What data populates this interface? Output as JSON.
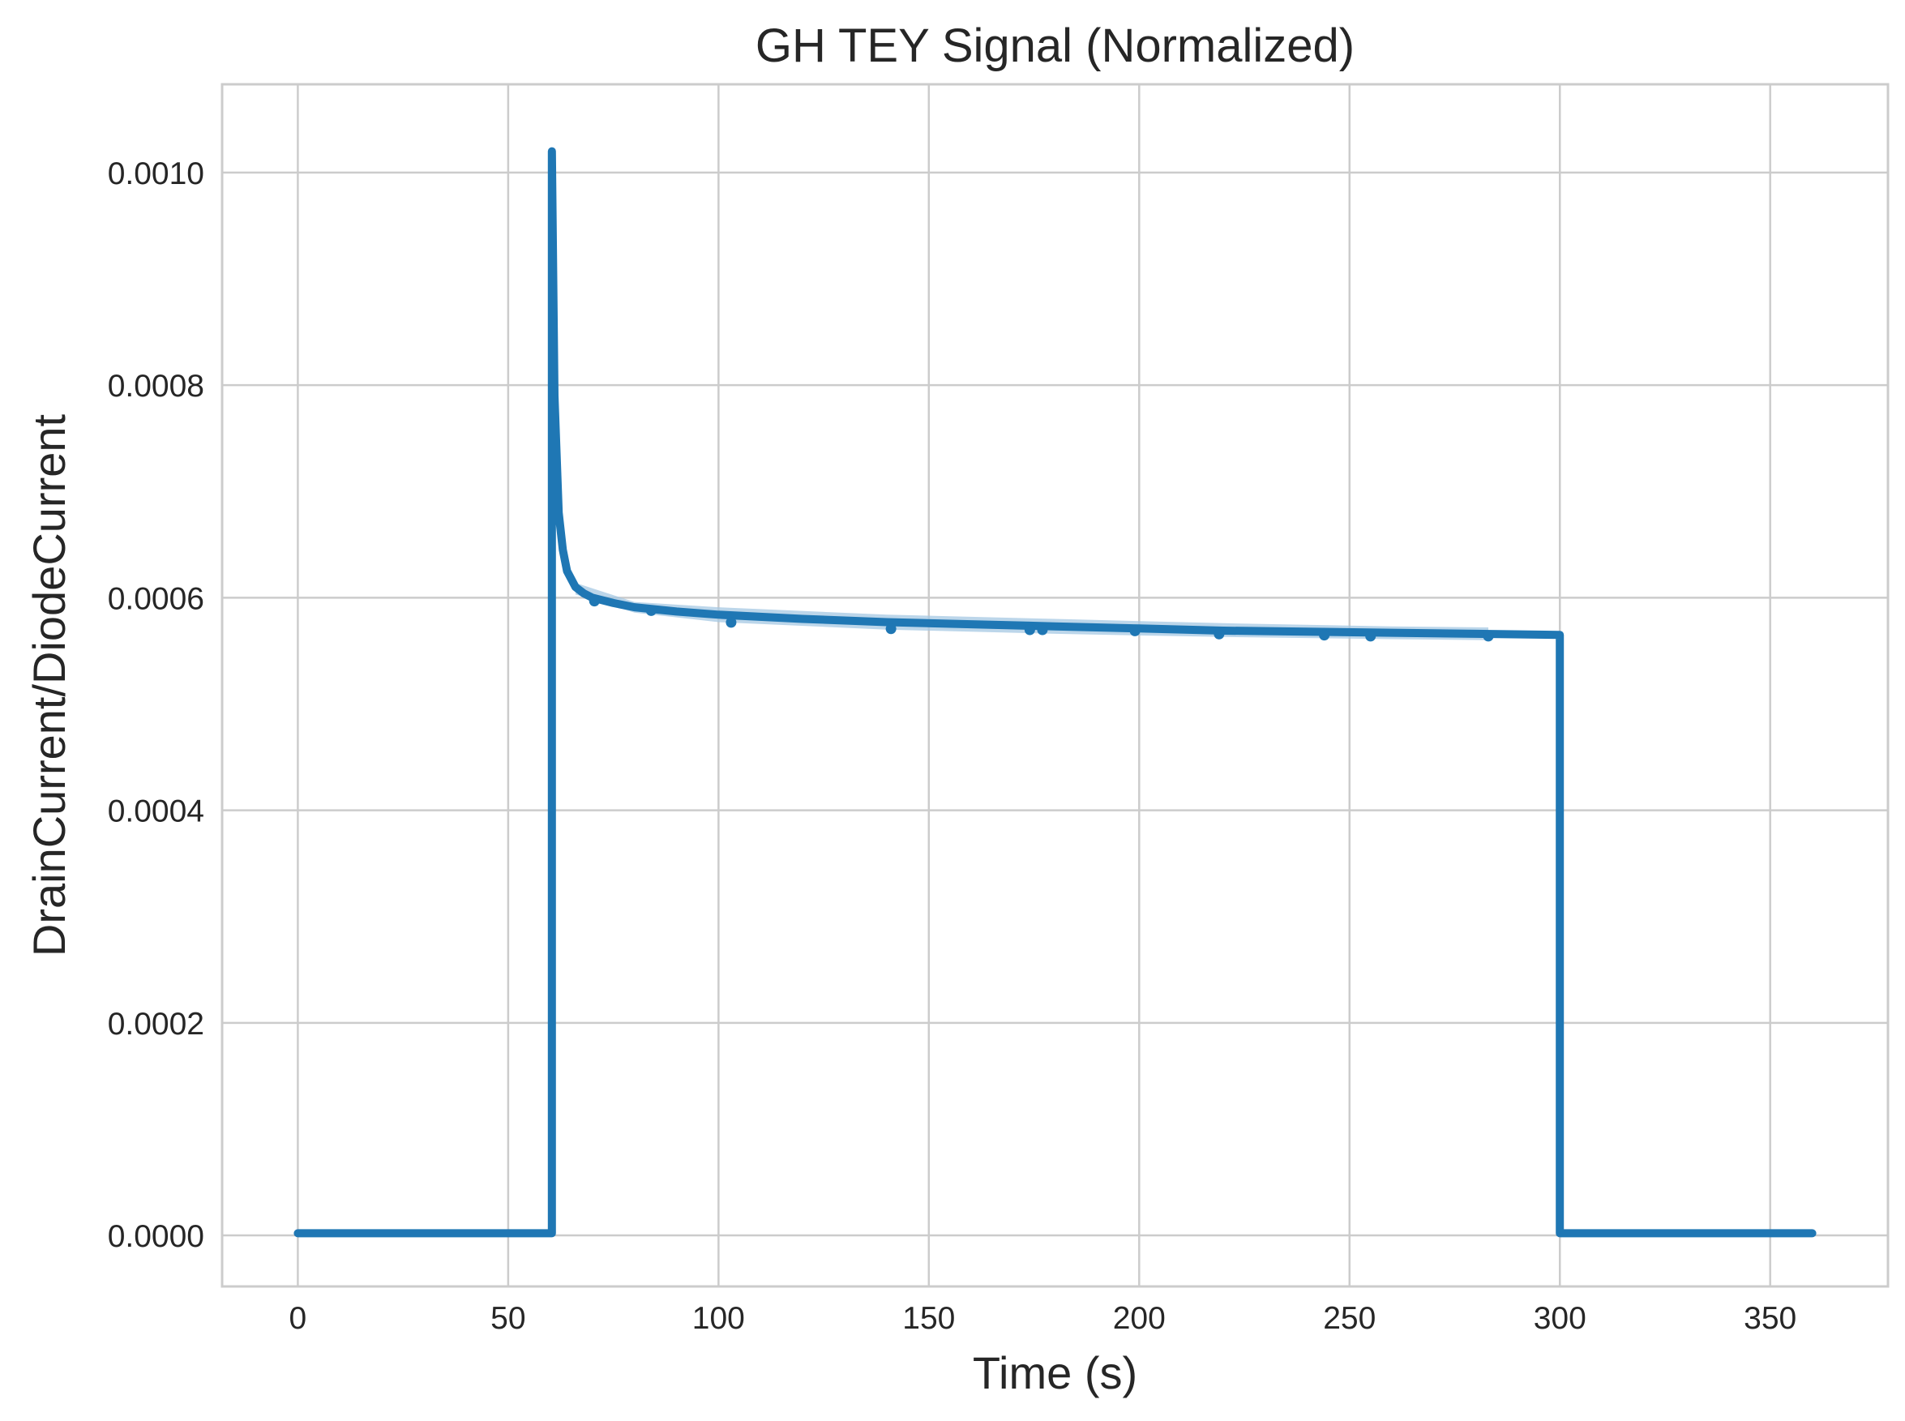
{
  "chart_data": {
    "type": "line",
    "title": "GH TEY Signal (Normalized)",
    "xlabel": "Time (s)",
    "ylabel": "DrainCurrent/DiodeCurrent",
    "xlim": [
      -18,
      378
    ],
    "ylim": [
      -4.8e-05,
      0.001083
    ],
    "x_ticks": [
      0,
      50,
      100,
      150,
      200,
      250,
      300,
      350
    ],
    "y_ticks": [
      0.0,
      0.0002,
      0.0004,
      0.0006,
      0.0008,
      0.001
    ],
    "x_tick_labels": [
      "0",
      "50",
      "100",
      "150",
      "200",
      "250",
      "300",
      "350"
    ],
    "y_tick_labels": [
      "0.0000",
      "0.0002",
      "0.0004",
      "0.0006",
      "0.0008",
      "0.0010"
    ],
    "grid": true,
    "style": "seaborn-whitegrid",
    "colors": {
      "line": "#1f77b4",
      "band": "#a6c8e3",
      "grid": "#cccccc",
      "text": "#262626"
    },
    "series": [
      {
        "x": [
          0,
          60.4,
          60.4,
          61,
          62,
          63,
          64,
          66,
          68,
          70,
          75,
          80,
          90,
          100,
          120,
          140,
          160,
          180,
          200,
          220,
          240,
          260,
          280,
          300,
          300,
          360
        ],
        "y": [
          2e-06,
          2e-06,
          0.00102,
          0.00079,
          0.00068,
          0.000645,
          0.000625,
          0.00061,
          0.000604,
          0.0006,
          0.000595,
          0.000591,
          0.000587,
          0.000584,
          0.00058,
          0.000577,
          0.000575,
          0.000573,
          0.000571,
          0.000569,
          0.000568,
          0.000567,
          0.000566,
          0.000565,
          2e-06,
          2e-06
        ]
      }
    ],
    "band": {
      "x": [
        66,
        80,
        100,
        140,
        180,
        220,
        260,
        283
      ],
      "lower": [
        0.000603,
        0.000586,
        0.000577,
        0.00057,
        0.000566,
        0.000563,
        0.000561,
        0.00056
      ],
      "upper": [
        0.000614,
        0.000596,
        0.000591,
        0.000584,
        0.00058,
        0.000576,
        0.000573,
        0.000572
      ]
    },
    "markers": {
      "x": [
        70.5,
        84,
        103,
        141,
        174,
        177,
        199,
        219,
        244,
        255,
        283
      ],
      "y": [
        0.000599,
        0.00059,
        0.000579,
        0.000573,
        0.000572,
        0.000572,
        0.000571,
        0.000568,
        0.000567,
        0.000566,
        0.000566
      ]
    }
  }
}
